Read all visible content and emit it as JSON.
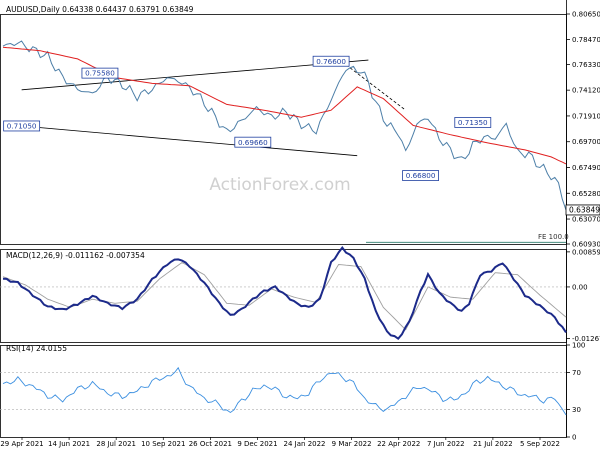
{
  "chart_data": {
    "type": "line",
    "symbol_header": "AUDUSD,Daily  0.64338 0.64437 0.63791 0.63849",
    "x_tick_labels": [
      "29 Apr 2021",
      "14 Jun 2021",
      "28 Jul 2021",
      "10 Sep 2021",
      "26 Oct 2021",
      "9 Dec 2021",
      "24 Jan 2022",
      "9 Mar 2022",
      "22 Apr 2022",
      "7 Jun 2022",
      "21 Jul 2022",
      "5 Sep 2022"
    ],
    "price_panel": {
      "y_range": [
        0.6093,
        0.8065
      ],
      "y_tick_labels": [
        "0.80650",
        "0.78470",
        "0.76330",
        "0.74120",
        "0.71910",
        "0.69700",
        "0.67490",
        "0.65280",
        "0.63070",
        "0.60930"
      ],
      "last_price_label": "0.63849",
      "last_price": 0.63849,
      "fe_label": "FE 100.0",
      "fe_level": 0.6133,
      "watermark": "ActionForex.com",
      "level_labels": [
        {
          "text": "0.75580",
          "value": 0.7558,
          "index": 26
        },
        {
          "text": "0.71050",
          "value": 0.7105,
          "index": 5
        },
        {
          "text": "0.69660",
          "value": 0.6966,
          "index": 67
        },
        {
          "text": "0.76600",
          "value": 0.766,
          "index": 88
        },
        {
          "text": "0.71350",
          "value": 0.7135,
          "index": 126
        },
        {
          "text": "0.66800",
          "value": 0.668,
          "index": 112
        }
      ],
      "trendlines": [
        {
          "from": [
            5,
            0.7415
          ],
          "to": [
            98,
            0.767
          ]
        },
        {
          "from": [
            5,
            0.7105
          ],
          "to": [
            95,
            0.685
          ]
        },
        {
          "from": [
            92,
            0.763
          ],
          "to": [
            108,
            0.724
          ]
        }
      ],
      "close_series_knots": [
        [
          0,
          0.779
        ],
        [
          4,
          0.782
        ],
        [
          8,
          0.776
        ],
        [
          12,
          0.77
        ],
        [
          16,
          0.752
        ],
        [
          20,
          0.742
        ],
        [
          24,
          0.738
        ],
        [
          28,
          0.752
        ],
        [
          32,
          0.746
        ],
        [
          36,
          0.736
        ],
        [
          40,
          0.742
        ],
        [
          44,
          0.752
        ],
        [
          48,
          0.748
        ],
        [
          52,
          0.738
        ],
        [
          56,
          0.722
        ],
        [
          60,
          0.705
        ],
        [
          64,
          0.715
        ],
        [
          68,
          0.726
        ],
        [
          72,
          0.718
        ],
        [
          76,
          0.723
        ],
        [
          80,
          0.712
        ],
        [
          84,
          0.706
        ],
        [
          88,
          0.733
        ],
        [
          92,
          0.76
        ],
        [
          96,
          0.758
        ],
        [
          98,
          0.748
        ],
        [
          100,
          0.73
        ],
        [
          103,
          0.712
        ],
        [
          106,
          0.705
        ],
        [
          108,
          0.688
        ],
        [
          111,
          0.712
        ],
        [
          114,
          0.718
        ],
        [
          117,
          0.7
        ],
        [
          120,
          0.69
        ],
        [
          123,
          0.68
        ],
        [
          126,
          0.694
        ],
        [
          129,
          0.701
        ],
        [
          132,
          0.7
        ],
        [
          135,
          0.712
        ],
        [
          138,
          0.688
        ],
        [
          141,
          0.686
        ],
        [
          144,
          0.676
        ],
        [
          147,
          0.668
        ],
        [
          149,
          0.66
        ],
        [
          151,
          0.641
        ]
      ],
      "ma_series_knots": [
        [
          0,
          0.778
        ],
        [
          10,
          0.775
        ],
        [
          20,
          0.768
        ],
        [
          30,
          0.752
        ],
        [
          40,
          0.747
        ],
        [
          50,
          0.745
        ],
        [
          60,
          0.729
        ],
        [
          70,
          0.724
        ],
        [
          80,
          0.718
        ],
        [
          88,
          0.724
        ],
        [
          95,
          0.744
        ],
        [
          102,
          0.734
        ],
        [
          110,
          0.711
        ],
        [
          120,
          0.703
        ],
        [
          130,
          0.696
        ],
        [
          140,
          0.69
        ],
        [
          147,
          0.684
        ],
        [
          151,
          0.678
        ]
      ]
    },
    "macd_panel": {
      "label": "MACD(12,26,9) -0.011162 -0.007354",
      "y_tick_labels": [
        "0.008596",
        "0.00",
        "-0.01267"
      ],
      "y_ticks": [
        0.008596,
        0.0,
        -0.01267
      ],
      "y_range": [
        -0.0135,
        0.0093
      ],
      "macd_knots": [
        [
          0,
          0.002
        ],
        [
          4,
          0.001
        ],
        [
          8,
          -0.002
        ],
        [
          12,
          -0.0048
        ],
        [
          16,
          -0.0056
        ],
        [
          20,
          -0.0042
        ],
        [
          24,
          -0.0022
        ],
        [
          28,
          -0.004
        ],
        [
          32,
          -0.0052
        ],
        [
          36,
          -0.003
        ],
        [
          40,
          0.0018
        ],
        [
          44,
          0.0056
        ],
        [
          47,
          0.007
        ],
        [
          50,
          0.0052
        ],
        [
          54,
          0.001
        ],
        [
          58,
          -0.004
        ],
        [
          61,
          -0.007
        ],
        [
          64,
          -0.0055
        ],
        [
          67,
          -0.003
        ],
        [
          70,
          -0.001
        ],
        [
          73,
          0.0
        ],
        [
          76,
          -0.0022
        ],
        [
          79,
          -0.0042
        ],
        [
          82,
          -0.005
        ],
        [
          85,
          -0.003
        ],
        [
          88,
          0.006
        ],
        [
          91,
          0.0095
        ],
        [
          94,
          0.007
        ],
        [
          97,
          0.002
        ],
        [
          100,
          -0.006
        ],
        [
          103,
          -0.011
        ],
        [
          106,
          -0.0128
        ],
        [
          109,
          -0.0085
        ],
        [
          112,
          -0.001
        ],
        [
          114,
          0.003
        ],
        [
          117,
          -0.0015
        ],
        [
          120,
          -0.004
        ],
        [
          123,
          -0.006
        ],
        [
          125,
          -0.004
        ],
        [
          128,
          0.003
        ],
        [
          131,
          0.004
        ],
        [
          134,
          0.006
        ],
        [
          137,
          0.002
        ],
        [
          140,
          -0.002
        ],
        [
          143,
          -0.004
        ],
        [
          146,
          -0.006
        ],
        [
          148,
          -0.0075
        ],
        [
          151,
          -0.0112
        ]
      ],
      "signal_knots": [
        [
          0,
          0.0025
        ],
        [
          6,
          0.0005
        ],
        [
          12,
          -0.003
        ],
        [
          18,
          -0.005
        ],
        [
          24,
          -0.003
        ],
        [
          30,
          -0.004
        ],
        [
          36,
          -0.0035
        ],
        [
          42,
          0.002
        ],
        [
          48,
          0.006
        ],
        [
          54,
          0.003
        ],
        [
          60,
          -0.004
        ],
        [
          66,
          -0.0045
        ],
        [
          72,
          -0.0005
        ],
        [
          78,
          -0.0025
        ],
        [
          84,
          -0.0038
        ],
        [
          90,
          0.0055
        ],
        [
          96,
          0.005
        ],
        [
          102,
          -0.005
        ],
        [
          108,
          -0.0105
        ],
        [
          114,
          0.0
        ],
        [
          120,
          -0.0025
        ],
        [
          126,
          -0.003
        ],
        [
          132,
          0.0035
        ],
        [
          138,
          0.003
        ],
        [
          144,
          -0.002
        ],
        [
          151,
          -0.0074
        ]
      ]
    },
    "rsi_panel": {
      "label": "RSI(14) 24.0155",
      "y_tick_labels": [
        "100",
        "70",
        "30",
        "0"
      ],
      "y_ticks": [
        100,
        70,
        30,
        0
      ],
      "y_range": [
        0,
        100
      ],
      "rsi_knots": [
        [
          0,
          58
        ],
        [
          4,
          62
        ],
        [
          8,
          55
        ],
        [
          12,
          45
        ],
        [
          16,
          40
        ],
        [
          20,
          52
        ],
        [
          24,
          58
        ],
        [
          28,
          48
        ],
        [
          32,
          44
        ],
        [
          36,
          50
        ],
        [
          40,
          60
        ],
        [
          44,
          66
        ],
        [
          47,
          72
        ],
        [
          50,
          55
        ],
        [
          54,
          42
        ],
        [
          58,
          35
        ],
        [
          61,
          26
        ],
        [
          64,
          40
        ],
        [
          67,
          50
        ],
        [
          70,
          56
        ],
        [
          73,
          52
        ],
        [
          76,
          44
        ],
        [
          79,
          42
        ],
        [
          82,
          48
        ],
        [
          85,
          62
        ],
        [
          88,
          70
        ],
        [
          91,
          66
        ],
        [
          94,
          58
        ],
        [
          97,
          42
        ],
        [
          100,
          33
        ],
        [
          103,
          30
        ],
        [
          106,
          38
        ],
        [
          109,
          48
        ],
        [
          112,
          55
        ],
        [
          115,
          50
        ],
        [
          118,
          42
        ],
        [
          121,
          40
        ],
        [
          124,
          48
        ],
        [
          127,
          60
        ],
        [
          130,
          64
        ],
        [
          133,
          58
        ],
        [
          136,
          52
        ],
        [
          139,
          46
        ],
        [
          142,
          44
        ],
        [
          145,
          40
        ],
        [
          148,
          42
        ],
        [
          151,
          24
        ]
      ]
    }
  }
}
